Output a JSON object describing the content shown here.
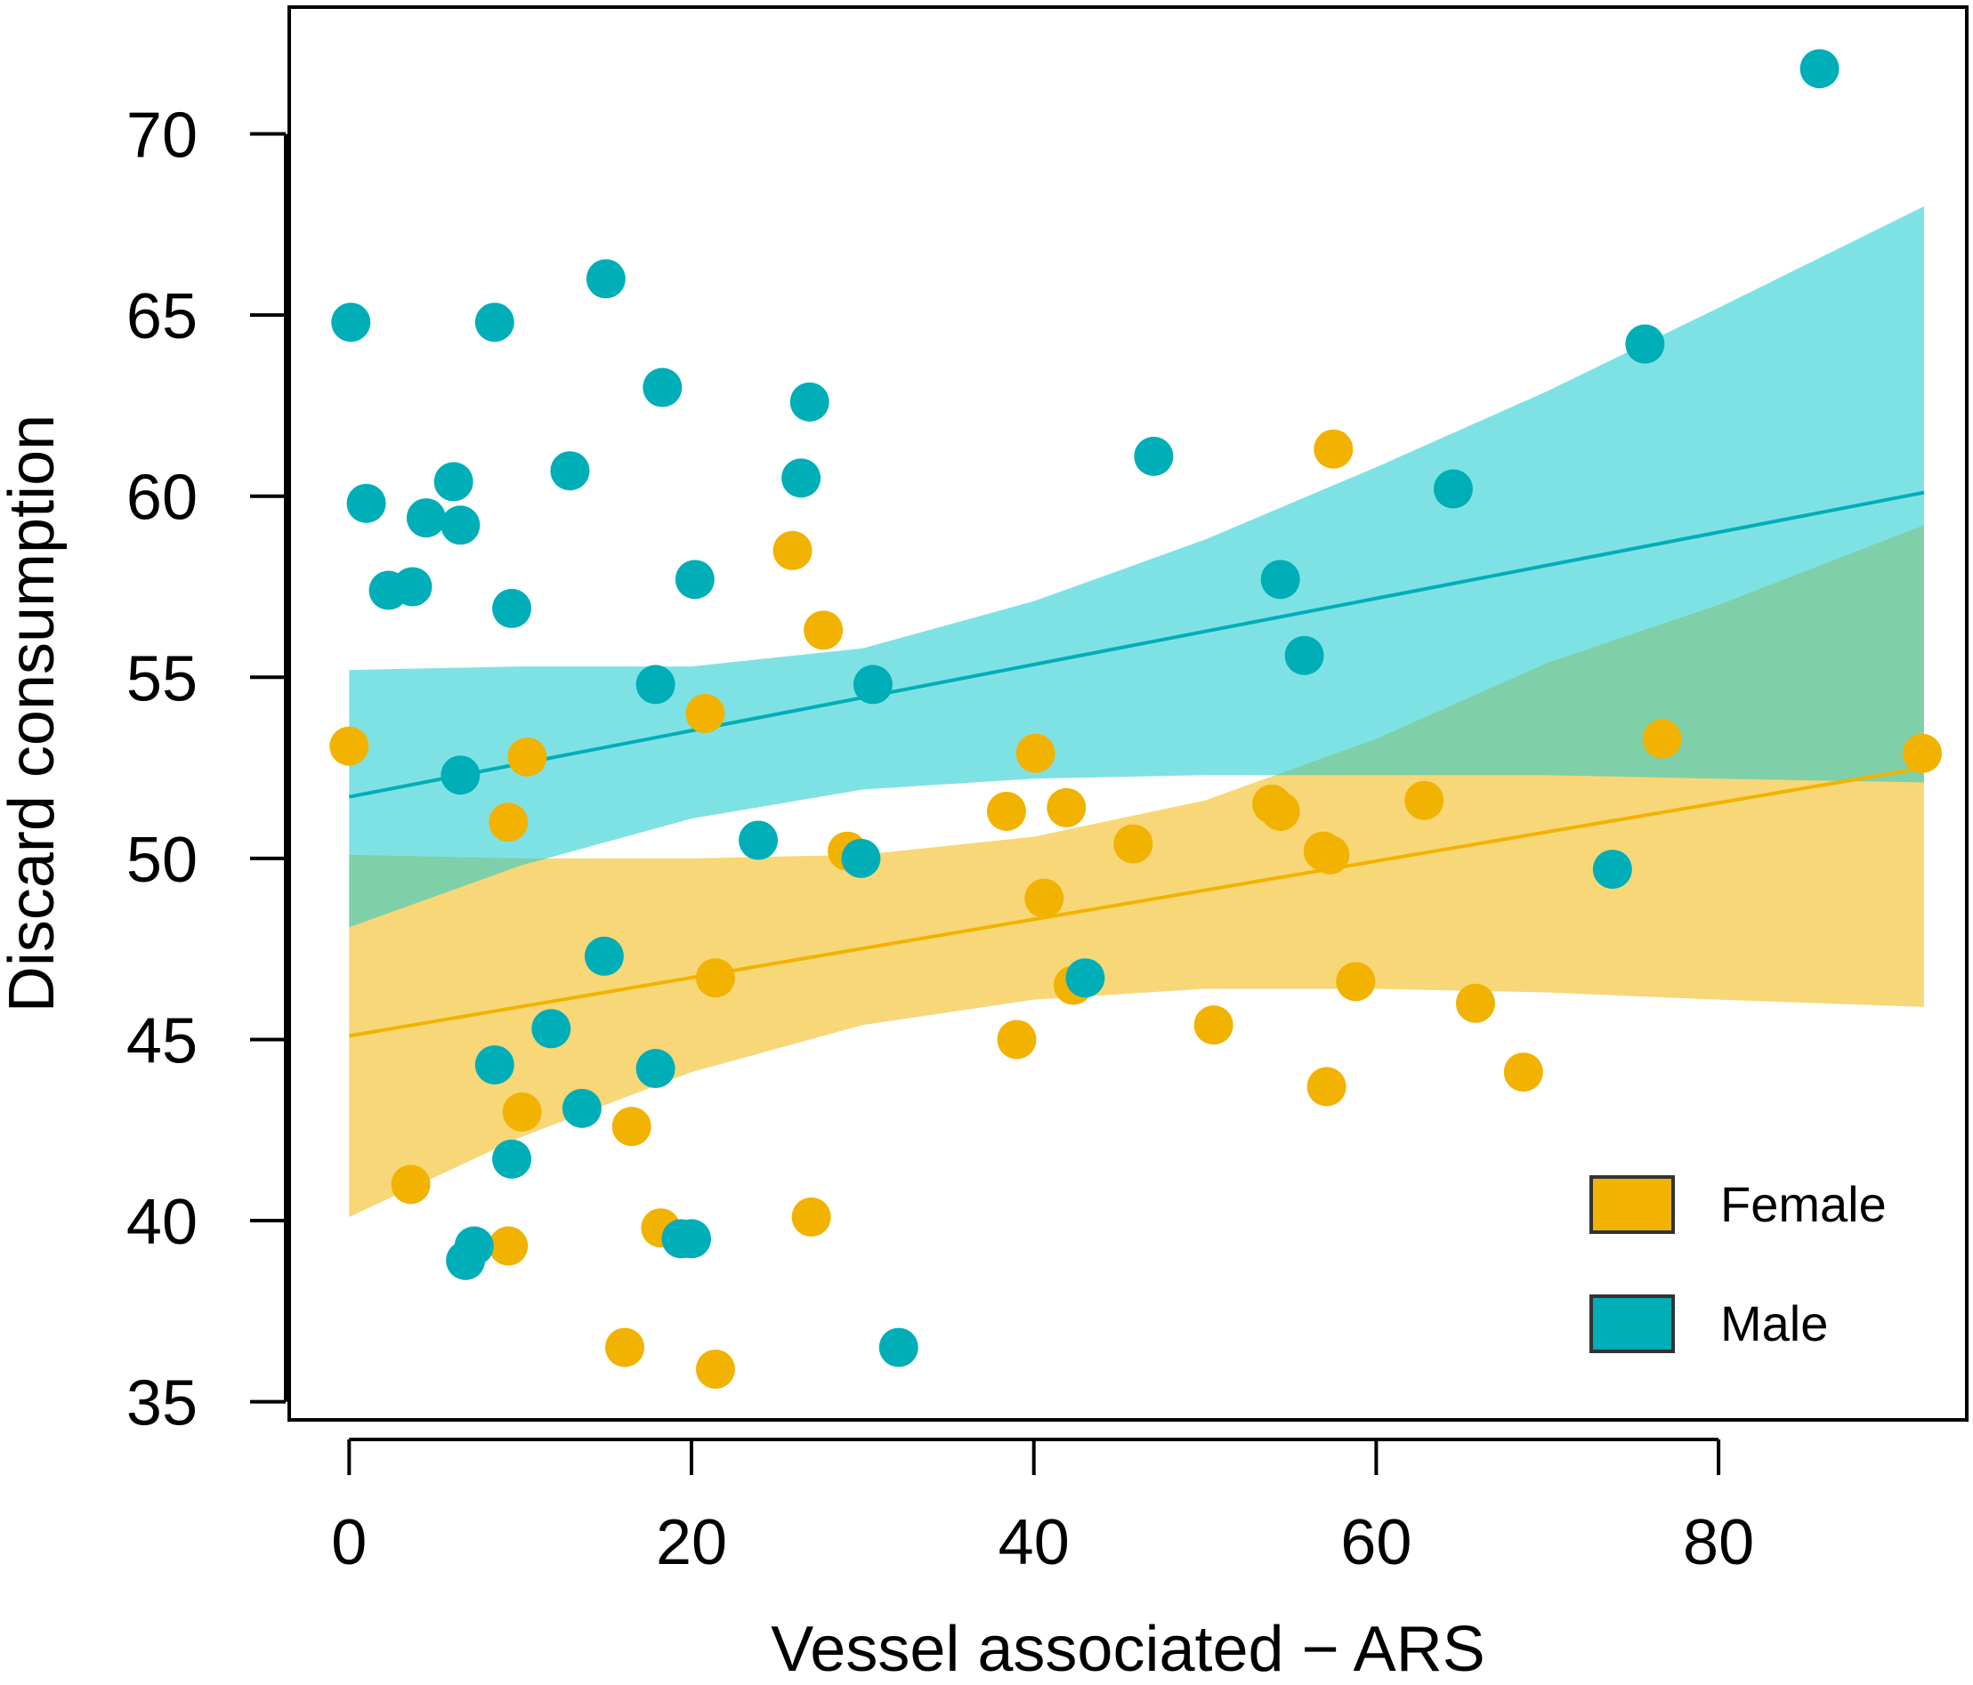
{
  "chart_data": {
    "type": "scatter",
    "title": "",
    "xlabel": "Vessel associated − ARS",
    "ylabel": "Discard consumption",
    "xlim": [
      -3.5,
      94.5
    ],
    "ylim": [
      34.5,
      73.5
    ],
    "xticks": [
      0,
      20,
      40,
      60,
      80
    ],
    "yticks": [
      35,
      40,
      45,
      50,
      55,
      60,
      65,
      70
    ],
    "legend_position": "bottom-right",
    "series": [
      {
        "name": "Female",
        "color": "#F2B200",
        "band_color": "#F7D778",
        "fit": {
          "x": [
            0,
            92
          ],
          "y": [
            45.1,
            52.5
          ]
        },
        "band": {
          "x": [
            0,
            10,
            20,
            30,
            40,
            50,
            60,
            70,
            80,
            92
          ],
          "lower": [
            40.1,
            42.3,
            44.1,
            45.4,
            46.1,
            46.4,
            46.4,
            46.3,
            46.1,
            45.9
          ],
          "upper": [
            50.1,
            50.0,
            50.0,
            50.1,
            50.6,
            51.6,
            53.3,
            55.4,
            57.0,
            59.2
          ]
        },
        "points": [
          [
            0,
            53.1
          ],
          [
            3.6,
            41.0
          ],
          [
            9.3,
            39.3
          ],
          [
            9.3,
            51.0
          ],
          [
            10.1,
            43.0
          ],
          [
            10.4,
            52.8
          ],
          [
            16.1,
            36.5
          ],
          [
            16.5,
            42.6
          ],
          [
            18.2,
            39.8
          ],
          [
            20.8,
            54.0
          ],
          [
            21.4,
            35.9
          ],
          [
            21.4,
            46.7
          ],
          [
            25.9,
            58.5
          ],
          [
            27.0,
            40.1
          ],
          [
            27.7,
            56.3
          ],
          [
            29.1,
            50.2
          ],
          [
            38.4,
            51.3
          ],
          [
            39.0,
            45.0
          ],
          [
            40.1,
            52.9
          ],
          [
            40.6,
            48.9
          ],
          [
            41.9,
            51.4
          ],
          [
            42.3,
            46.5
          ],
          [
            45.8,
            50.4
          ],
          [
            50.5,
            45.4
          ],
          [
            53.9,
            51.5
          ],
          [
            54.4,
            51.3
          ],
          [
            56.9,
            50.2
          ],
          [
            57.1,
            43.7
          ],
          [
            57.3,
            50.1
          ],
          [
            57.5,
            61.3
          ],
          [
            58.8,
            46.6
          ],
          [
            62.8,
            51.6
          ],
          [
            65.8,
            46.0
          ],
          [
            68.6,
            44.1
          ],
          [
            76.7,
            53.3
          ],
          [
            91.9,
            52.9
          ]
        ]
      },
      {
        "name": "Male",
        "color": "#00AEB8",
        "band_color": "#7EE2E5",
        "fit": {
          "x": [
            0,
            92
          ],
          "y": [
            51.7,
            60.1
          ]
        },
        "band": {
          "x": [
            0,
            10,
            20,
            30,
            40,
            50,
            60,
            70,
            80,
            92
          ],
          "lower": [
            48.1,
            49.8,
            51.1,
            51.9,
            52.2,
            52.3,
            52.3,
            52.3,
            52.2,
            52.1
          ],
          "upper": [
            55.2,
            55.3,
            55.3,
            55.8,
            57.1,
            58.8,
            60.8,
            62.9,
            65.2,
            68.0
          ]
        },
        "points": [
          [
            0.1,
            64.8
          ],
          [
            1.0,
            59.8
          ],
          [
            2.3,
            57.4
          ],
          [
            3.7,
            57.5
          ],
          [
            4.5,
            59.4
          ],
          [
            6.1,
            60.4
          ],
          [
            6.5,
            59.2
          ],
          [
            6.5,
            52.3
          ],
          [
            6.8,
            38.9
          ],
          [
            7.3,
            39.3
          ],
          [
            8.5,
            64.8
          ],
          [
            8.5,
            44.3
          ],
          [
            9.5,
            56.9
          ],
          [
            9.5,
            41.7
          ],
          [
            11.8,
            45.3
          ],
          [
            12.9,
            60.7
          ],
          [
            13.6,
            43.1
          ],
          [
            14.9,
            47.3
          ],
          [
            15.0,
            66.0
          ],
          [
            17.9,
            54.8
          ],
          [
            17.9,
            44.2
          ],
          [
            18.3,
            63.0
          ],
          [
            19.4,
            39.5
          ],
          [
            20.0,
            39.5
          ],
          [
            20.2,
            57.7
          ],
          [
            23.9,
            50.5
          ],
          [
            26.4,
            60.5
          ],
          [
            26.9,
            62.6
          ],
          [
            29.9,
            50.0
          ],
          [
            30.6,
            54.8
          ],
          [
            32.1,
            36.5
          ],
          [
            43.0,
            46.7
          ],
          [
            47.0,
            61.1
          ],
          [
            54.4,
            57.7
          ],
          [
            55.8,
            55.6
          ],
          [
            64.5,
            60.2
          ],
          [
            73.8,
            49.7
          ],
          [
            75.7,
            64.2
          ],
          [
            85.9,
            71.8
          ]
        ]
      }
    ]
  }
}
